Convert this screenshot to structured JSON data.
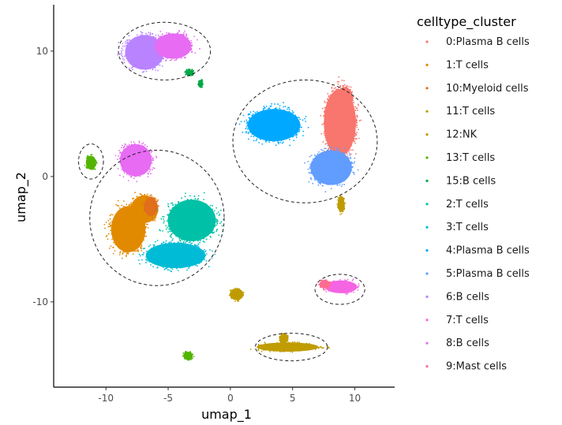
{
  "chart_data": {
    "type": "scatter",
    "xlabel": "umap_1",
    "ylabel": "umap_2",
    "xlim": [
      -14.2,
      13.2
    ],
    "ylim": [
      -16.8,
      13.7
    ],
    "x_ticks": [
      -10,
      -5,
      0,
      5,
      10
    ],
    "x_tick_labels": [
      "-10",
      "-5",
      "0",
      "5",
      "10"
    ],
    "y_ticks": [
      -10,
      0,
      10
    ],
    "y_tick_labels": [
      "-10",
      "0",
      "10"
    ],
    "grid": false,
    "legend": {
      "title": "celltype_cluster",
      "placement": "right"
    },
    "series": [
      {
        "name": "0:Plasma B cells",
        "color": "#F8766D",
        "clusters": [
          {
            "cx": 8.8,
            "cy": 4.3,
            "rx": 1.4,
            "ry": 2.9
          },
          {
            "cx": 9.2,
            "cy": 6.3,
            "rx": 0.7,
            "ry": 0.9
          }
        ]
      },
      {
        "name": "1:T cells",
        "color": "#E18A00",
        "clusters": [
          {
            "cx": -8.2,
            "cy": -4.2,
            "rx": 1.5,
            "ry": 2.0
          },
          {
            "cx": -6.9,
            "cy": -2.6,
            "rx": 1.2,
            "ry": 1.2
          }
        ]
      },
      {
        "name": "10:Myeloid cells",
        "color": "#E06E1A",
        "clusters": [
          {
            "cx": -6.4,
            "cy": -2.4,
            "rx": 0.6,
            "ry": 0.8
          }
        ]
      },
      {
        "name": "11:T cells",
        "color": "#BE9C00",
        "clusters": [
          {
            "cx": 0.5,
            "cy": -9.4,
            "rx": 0.6,
            "ry": 0.5
          },
          {
            "cx": 8.9,
            "cy": -2.2,
            "rx": 0.3,
            "ry": 0.7
          }
        ]
      },
      {
        "name": "12:NK",
        "color": "#C09C00",
        "clusters": [
          {
            "cx": 4.6,
            "cy": -13.6,
            "rx": 2.7,
            "ry": 0.4
          },
          {
            "cx": 4.3,
            "cy": -12.9,
            "rx": 0.4,
            "ry": 0.4
          }
        ]
      },
      {
        "name": "13:T cells",
        "color": "#53B400",
        "clusters": [
          {
            "cx": -11.2,
            "cy": 1.1,
            "rx": 0.45,
            "ry": 0.6
          },
          {
            "cx": -3.4,
            "cy": -14.3,
            "rx": 0.4,
            "ry": 0.35
          }
        ]
      },
      {
        "name": "15:B cells",
        "color": "#00A846",
        "clusters": [
          {
            "cx": -3.3,
            "cy": 8.3,
            "rx": 0.35,
            "ry": 0.25
          },
          {
            "cx": -2.4,
            "cy": 7.4,
            "rx": 0.2,
            "ry": 0.3
          }
        ]
      },
      {
        "name": "2:T cells",
        "color": "#00C1A7",
        "clusters": [
          {
            "cx": -3.1,
            "cy": -3.5,
            "rx": 2.1,
            "ry": 1.8
          }
        ]
      },
      {
        "name": "3:T cells",
        "color": "#00BBD6",
        "clusters": [
          {
            "cx": -4.4,
            "cy": -6.3,
            "rx": 2.6,
            "ry": 1.1
          }
        ]
      },
      {
        "name": "4:Plasma B cells",
        "color": "#00A9FF",
        "clusters": [
          {
            "cx": 3.5,
            "cy": 4.1,
            "rx": 2.3,
            "ry": 1.4
          }
        ]
      },
      {
        "name": "5:Plasma B cells",
        "color": "#619CFF",
        "clusters": [
          {
            "cx": 8.1,
            "cy": 0.7,
            "rx": 1.8,
            "ry": 1.5
          }
        ]
      },
      {
        "name": "6:B cells",
        "color": "#B983FF",
        "clusters": [
          {
            "cx": -6.9,
            "cy": 9.9,
            "rx": 1.7,
            "ry": 1.5
          }
        ]
      },
      {
        "name": "7:T cells",
        "color": "#F564E3",
        "clusters": [
          {
            "cx": 8.9,
            "cy": -8.8,
            "rx": 1.4,
            "ry": 0.55
          }
        ]
      },
      {
        "name": "8:B cells",
        "color": "#E76BF3",
        "clusters": [
          {
            "cx": -7.6,
            "cy": 1.3,
            "rx": 1.4,
            "ry": 1.4
          },
          {
            "cx": -4.6,
            "cy": 10.4,
            "rx": 1.6,
            "ry": 1.1
          }
        ]
      },
      {
        "name": "9:Mast cells",
        "color": "#FF6C91",
        "clusters": [
          {
            "cx": 7.6,
            "cy": -8.6,
            "rx": 0.5,
            "ry": 0.35
          }
        ]
      }
    ],
    "outlines": [
      {
        "cx": -5.3,
        "cy": 10.0,
        "rx": 3.7,
        "ry": 2.3
      },
      {
        "cx": -11.2,
        "cy": 1.2,
        "rx": 1.0,
        "ry": 1.4
      },
      {
        "cx": -5.9,
        "cy": -3.3,
        "rx": 5.4,
        "ry": 5.4
      },
      {
        "cx": 6.0,
        "cy": 2.8,
        "rx": 5.8,
        "ry": 4.9
      },
      {
        "cx": 8.8,
        "cy": -9.0,
        "rx": 2.0,
        "ry": 1.2
      },
      {
        "cx": 4.9,
        "cy": -13.6,
        "rx": 2.9,
        "ry": 1.1
      }
    ]
  }
}
